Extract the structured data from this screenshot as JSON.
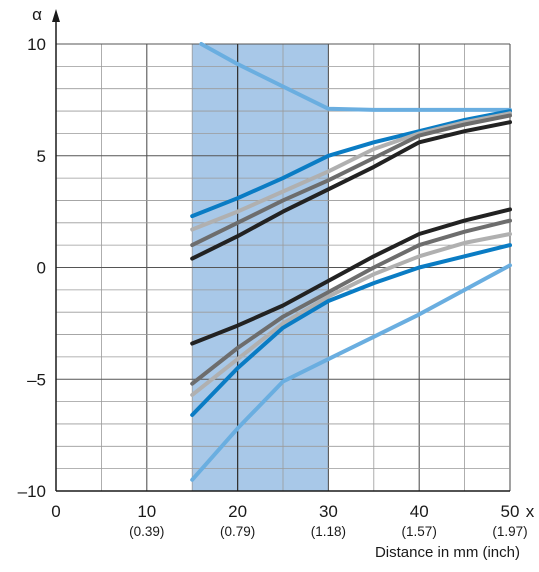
{
  "chart_data": {
    "type": "line",
    "ylabel": "α",
    "xlabel_end": "x",
    "xlabel": "Distance in mm (inch)",
    "xlim": [
      0,
      50
    ],
    "ylim": [
      -10,
      10
    ],
    "x_ticks": [
      {
        "value": 0,
        "label": "0",
        "sublabel": ""
      },
      {
        "value": 10,
        "label": "10",
        "sublabel": "(0.39)"
      },
      {
        "value": 20,
        "label": "20",
        "sublabel": "(0.79)"
      },
      {
        "value": 30,
        "label": "30",
        "sublabel": "(1.18)"
      },
      {
        "value": 40,
        "label": "40",
        "sublabel": "(1.57)"
      },
      {
        "value": 50,
        "label": "50",
        "sublabel": "(1.97)"
      }
    ],
    "y_ticks": [
      {
        "value": -10,
        "label": "–10"
      },
      {
        "value": -5,
        "label": "–5"
      },
      {
        "value": 0,
        "label": "0"
      },
      {
        "value": 5,
        "label": "5"
      },
      {
        "value": 10,
        "label": "10"
      }
    ],
    "minor_grid": {
      "x_step": 5,
      "y_step": 1
    },
    "highlight_band": {
      "x_from": 15,
      "x_to": 30,
      "color": "#a8c8e8",
      "divider_x": 20
    },
    "colors": {
      "black": "#222222",
      "dark_gray": "#6d6d6d",
      "light_gray": "#b0b0b0",
      "blue": "#0a7cc4",
      "light_blue": "#6aaee0",
      "grid": "#9a9a9a",
      "axis": "#1a1a1a"
    },
    "series": [
      {
        "color": "light_blue",
        "points": [
          [
            16,
            10
          ],
          [
            20,
            9.1
          ],
          [
            25,
            8.1
          ],
          [
            30,
            7.1
          ],
          [
            35,
            7.05
          ],
          [
            40,
            7.05
          ],
          [
            45,
            7.05
          ],
          [
            50,
            7.05
          ]
        ]
      },
      {
        "color": "blue",
        "points": [
          [
            15,
            2.3
          ],
          [
            20,
            3.1
          ],
          [
            25,
            4.0
          ],
          [
            30,
            5.0
          ],
          [
            35,
            5.6
          ],
          [
            40,
            6.1
          ],
          [
            45,
            6.6
          ],
          [
            50,
            7.0
          ]
        ]
      },
      {
        "color": "light_gray",
        "points": [
          [
            15,
            1.7
          ],
          [
            20,
            2.5
          ],
          [
            25,
            3.4
          ],
          [
            30,
            4.3
          ],
          [
            35,
            5.3
          ],
          [
            40,
            6.0
          ],
          [
            45,
            6.5
          ],
          [
            50,
            6.9
          ]
        ]
      },
      {
        "color": "dark_gray",
        "points": [
          [
            15,
            1.0
          ],
          [
            20,
            2.0
          ],
          [
            25,
            3.0
          ],
          [
            30,
            3.9
          ],
          [
            35,
            4.9
          ],
          [
            40,
            5.9
          ],
          [
            45,
            6.4
          ],
          [
            50,
            6.8
          ]
        ]
      },
      {
        "color": "black",
        "points": [
          [
            15,
            0.4
          ],
          [
            20,
            1.4
          ],
          [
            25,
            2.5
          ],
          [
            30,
            3.5
          ],
          [
            35,
            4.5
          ],
          [
            40,
            5.6
          ],
          [
            45,
            6.1
          ],
          [
            50,
            6.5
          ]
        ]
      },
      {
        "color": "black",
        "points": [
          [
            15,
            -3.4
          ],
          [
            20,
            -2.6
          ],
          [
            25,
            -1.7
          ],
          [
            30,
            -0.6
          ],
          [
            35,
            0.5
          ],
          [
            40,
            1.5
          ],
          [
            45,
            2.1
          ],
          [
            50,
            2.6
          ]
        ]
      },
      {
        "color": "dark_gray",
        "points": [
          [
            15,
            -5.2
          ],
          [
            20,
            -3.6
          ],
          [
            25,
            -2.2
          ],
          [
            30,
            -1.1
          ],
          [
            35,
            0.0
          ],
          [
            40,
            1.0
          ],
          [
            45,
            1.6
          ],
          [
            50,
            2.1
          ]
        ]
      },
      {
        "color": "light_gray",
        "points": [
          [
            15,
            -5.7
          ],
          [
            20,
            -4.1
          ],
          [
            25,
            -2.5
          ],
          [
            30,
            -1.3
          ],
          [
            35,
            -0.3
          ],
          [
            40,
            0.5
          ],
          [
            45,
            1.1
          ],
          [
            50,
            1.5
          ]
        ]
      },
      {
        "color": "blue",
        "points": [
          [
            15,
            -6.6
          ],
          [
            20,
            -4.5
          ],
          [
            25,
            -2.7
          ],
          [
            30,
            -1.5
          ],
          [
            35,
            -0.7
          ],
          [
            40,
            0.0
          ],
          [
            45,
            0.5
          ],
          [
            50,
            1.0
          ]
        ]
      },
      {
        "color": "light_blue",
        "points": [
          [
            15,
            -9.5
          ],
          [
            20,
            -7.2
          ],
          [
            25,
            -5.1
          ],
          [
            30,
            -4.1
          ],
          [
            35,
            -3.1
          ],
          [
            40,
            -2.1
          ],
          [
            45,
            -1.0
          ],
          [
            50,
            0.1
          ]
        ]
      }
    ]
  }
}
